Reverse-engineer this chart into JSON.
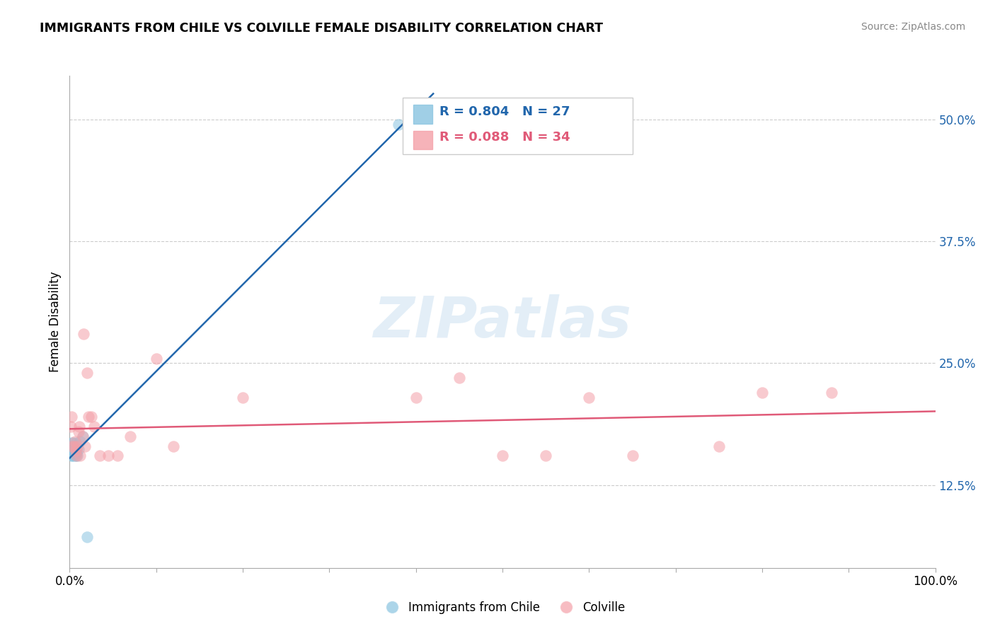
{
  "title": "IMMIGRANTS FROM CHILE VS COLVILLE FEMALE DISABILITY CORRELATION CHART",
  "source": "Source: ZipAtlas.com",
  "ylabel": "Female Disability",
  "xlim": [
    0.0,
    1.0
  ],
  "ylim": [
    0.04,
    0.545
  ],
  "blue_R": 0.804,
  "blue_N": 27,
  "pink_R": 0.088,
  "pink_N": 34,
  "legend_label_blue": "Immigrants from Chile",
  "legend_label_pink": "Colville",
  "blue_color": "#89c4e0",
  "pink_color": "#f4a0a8",
  "blue_line_color": "#2166ac",
  "pink_line_color": "#e05a78",
  "watermark_color": "#c8dff0",
  "blue_points_x": [
    0.001,
    0.001,
    0.002,
    0.002,
    0.002,
    0.003,
    0.003,
    0.003,
    0.003,
    0.004,
    0.004,
    0.004,
    0.005,
    0.005,
    0.005,
    0.006,
    0.006,
    0.007,
    0.007,
    0.008,
    0.008,
    0.009,
    0.01,
    0.012,
    0.015,
    0.38,
    0.02
  ],
  "blue_points_y": [
    0.158,
    0.162,
    0.155,
    0.16,
    0.168,
    0.155,
    0.158,
    0.162,
    0.165,
    0.158,
    0.162,
    0.168,
    0.155,
    0.16,
    0.162,
    0.158,
    0.162,
    0.155,
    0.168,
    0.158,
    0.162,
    0.155,
    0.162,
    0.17,
    0.175,
    0.495,
    0.072
  ],
  "pink_points_x": [
    0.001,
    0.002,
    0.003,
    0.005,
    0.006,
    0.007,
    0.008,
    0.009,
    0.01,
    0.011,
    0.012,
    0.015,
    0.016,
    0.018,
    0.02,
    0.022,
    0.025,
    0.028,
    0.035,
    0.045,
    0.055,
    0.07,
    0.1,
    0.12,
    0.2,
    0.4,
    0.45,
    0.5,
    0.55,
    0.6,
    0.65,
    0.75,
    0.8,
    0.88
  ],
  "pink_points_y": [
    0.185,
    0.195,
    0.165,
    0.165,
    0.17,
    0.16,
    0.155,
    0.165,
    0.18,
    0.185,
    0.155,
    0.175,
    0.28,
    0.165,
    0.24,
    0.195,
    0.195,
    0.185,
    0.155,
    0.155,
    0.155,
    0.175,
    0.255,
    0.165,
    0.215,
    0.215,
    0.235,
    0.155,
    0.155,
    0.215,
    0.155,
    0.165,
    0.22,
    0.22
  ],
  "background_color": "#ffffff",
  "grid_color": "#cccccc",
  "ytick_positions": [
    0.125,
    0.25,
    0.375,
    0.5
  ],
  "ytick_labels": [
    "12.5%",
    "25.0%",
    "37.5%",
    "50.0%"
  ],
  "xtick_positions": [
    0.0,
    0.1,
    0.2,
    0.3,
    0.4,
    0.5,
    0.6,
    0.7,
    0.8,
    0.9,
    1.0
  ]
}
